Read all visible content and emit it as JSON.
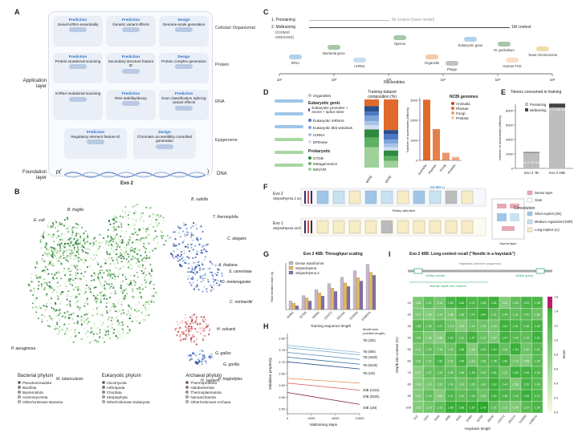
{
  "panelA": {
    "letter": "A",
    "layer_label_app": "Application layer",
    "layer_label_found": "Foundation layer",
    "rows": [
      {
        "name": "Cellular/ Organismal",
        "cells": [
          {
            "kind": "Prediction",
            "text": "Gene/ncRNA essentiality"
          },
          {
            "kind": "Prediction",
            "text": "Genetic variant effects"
          },
          {
            "kind": "Design",
            "text": "Genome-scale generation"
          }
        ]
      },
      {
        "name": "Protein",
        "cells": [
          {
            "kind": "Prediction",
            "text": "Protein mutational scanning"
          },
          {
            "kind": "Prediction",
            "text": "Secondary structure feature ID"
          },
          {
            "kind": "Design",
            "text": "Protein complex generation"
          }
        ]
      },
      {
        "name": "RNA",
        "cells": [
          {
            "kind": "",
            "text": "ncRNA mutational scanning"
          },
          {
            "kind": "Prediction",
            "text": "RNA stability/decay"
          },
          {
            "kind": "Prediction",
            "text": "Exon classification Splicing variant effects"
          }
        ]
      },
      {
        "name": "Epigenome",
        "cells": [
          {
            "kind": "Prediction",
            "text": "Regulatory element feature ID"
          },
          {
            "kind": "Design",
            "text": "Chromatin accessibility controlled generation"
          }
        ]
      }
    ],
    "dna_label": "DNA",
    "p_symbol": "p(",
    "p_close": ")",
    "evo_label": "Evo 2"
  },
  "panelB": {
    "letter": "B",
    "species": [
      "B. fragilis",
      "E. coli",
      "B. subtilis",
      "T. thermophila",
      "C. elegans",
      "A. thaliana",
      "S. cerevisiae",
      "D. melanogaster",
      "C. reinhardtii",
      "H. volcanii",
      "G. gallus",
      "G. gorilla",
      "H. sapiens",
      "P. troglodytes",
      "P. aeruginosa",
      "M. tuberculosis"
    ],
    "legend": [
      {
        "title": "Bacterial phylum",
        "items": [
          {
            "label": "Pseudomonadota",
            "color": "#1d6b2f"
          },
          {
            "label": "Bacillota",
            "color": "#3f9a45"
          },
          {
            "label": "Bacteroidota",
            "color": "#7cc26b"
          },
          {
            "label": "Actinomycetota",
            "color": "#b7dfa8"
          },
          {
            "label": "Other/Unknown Bacteria",
            "color": "#e3f1dc"
          }
        ]
      },
      {
        "title": "Eukaryotic phylum",
        "items": [
          {
            "label": "Ascomycota",
            "color": "#1f3f8f"
          },
          {
            "label": "Arthropoda",
            "color": "#3a63b8"
          },
          {
            "label": "Chordata",
            "color": "#6f93d2"
          },
          {
            "label": "Streptophyta",
            "color": "#a9c0e6"
          },
          {
            "label": "Other/Unknown Eukaryota",
            "color": "#dbe5f5"
          }
        ]
      },
      {
        "title": "Archaeal phylum",
        "items": [
          {
            "label": "Thermoproteota",
            "color": "#a3222a"
          },
          {
            "label": "Halobacteriota",
            "color": "#d44a4f"
          },
          {
            "label": "Thermoplasmatota",
            "color": "#e9878a"
          },
          {
            "label": "Nanoarchaeota",
            "color": "#f4bcbd"
          },
          {
            "label": "Other/Unknown Archaea",
            "color": "#fae3e3"
          }
        ]
      }
    ]
  },
  "panelC": {
    "letter": "C",
    "step1": "1. Pretraining",
    "step2": "2. Midtraining",
    "step2b": "(context extension)",
    "ctx8k": "8k context (base model)",
    "ctx1m": "1M context",
    "xlabel": "Nucleotides",
    "ticks": [
      "10¹",
      "10²",
      "10³",
      "10⁴",
      "10⁵",
      "10⁶"
    ],
    "items": [
      "tRNA",
      "Bacterial gene",
      "ncRNA",
      "Operon",
      "Organelle",
      "Eukaryotic gene",
      "Phage",
      "M. genitalium",
      "Human TAD",
      "Yeast chromosome"
    ]
  },
  "panelD": {
    "letter": "D",
    "comp_title": "Training dataset composition (%)",
    "legend_title1": "Organelles",
    "legend_title2": "Eukaryotic genic",
    "euk_items": [
      "Eukaryotic promoter + exons + splice sites",
      "Eukaryotic mRNAs",
      "Eukaryotic 5kb windows",
      "ncRNA",
      "EPDnew"
    ],
    "prok_title": "Prokaryotic",
    "prok_items": [
      "GTDB",
      "Metagenomics",
      "IMG/VR"
    ],
    "ncbi_title": "NCBI genomes",
    "ncbi_items": [
      "Animalia",
      "Plantae",
      "Fungi",
      "Protista"
    ],
    "bar_cats": [
      "Pretraining",
      "Midtraining"
    ],
    "ylabel": "Number of nucleotides (billions)",
    "yticks": [
      "0",
      "1000",
      "2000",
      "3000"
    ],
    "ncbi_cats": [
      "Animalia",
      "Plantae",
      "Fungi",
      "Protista"
    ]
  },
  "panelE": {
    "letter": "E",
    "title": "Tokens consumed in training",
    "legend": [
      "Pretraining",
      "Midtraining"
    ],
    "ylabel": "Number of nucleotides (billions)",
    "yticks": [
      "0",
      "2000",
      "4000",
      "6000",
      "8000"
    ],
    "cats": [
      "Evo 2 7B",
      "Evo 2 40B"
    ],
    "lbl7b": "Evo 2 7B base",
    "lbl40b": "Evo 2 40B base"
  },
  "panelF": {
    "letter": "F",
    "arch1": "Evo 2",
    "arch1b": "StripedHyena 2 architecture",
    "arch2": "Evo 1",
    "arch2b": "StripedHyena architecture",
    "se_label": "SE-MR-LI",
    "rotary": "Rotary attention",
    "hyena": "Hyena layer",
    "legend": [
      {
        "label": "Dense layer",
        "color": "#e6a9b4"
      },
      {
        "label": "Gate",
        "color": "#ffffff"
      },
      {
        "label": "Short explicit (SE)",
        "color": "#9fc6e8"
      },
      {
        "label": "Medium regularized (MR)",
        "color": "#c8e2f1"
      },
      {
        "label": "Long implicit (LI)",
        "color": "#f7ecc4"
      }
    ],
    "conv_title": "Convolution"
  },
  "panelG": {
    "letter": "G",
    "title": "Evo 2 40B: Throughput scaling",
    "legend": [
      "Dense transformer",
      "StripedHyena",
      "StripedHyena 2"
    ],
    "xlabel": "Training sequence length",
    "ylabel": "Total iteration time (s)",
    "xticks": [
      "16384",
      "32768",
      "65536",
      "131072",
      "262144",
      "524288",
      "1048576"
    ]
  },
  "panelH": {
    "letter": "H",
    "xlabel": "Midtraining steps",
    "ylabel": "Validation perplexity",
    "yticks": [
      "2.50",
      "2.55",
      "2.60",
      "2.65",
      "2.70",
      "2.75",
      "2.80"
    ],
    "xticks": [
      "0",
      "4000",
      "8000",
      "12000"
    ],
    "legend_title": "Model size (context length)",
    "series": [
      "7B (32k)",
      "7B (65k)",
      "7B (262k)",
      "7B (524k)",
      "7B (1M)",
      "40B (131k)",
      "40B (262k)",
      "40B (1M)"
    ]
  },
  "panelI": {
    "letter": "I",
    "title": "Evo 2 40B: Long-context recall (\"Needle in a haystack\")",
    "haystack": "Haystack (random sequence)",
    "needle": "100bp needle",
    "query": "100bp query",
    "depth": "Needle depth into context",
    "xlabel": "Haystack length",
    "ylabel": "Depth into context (%)",
    "colorbar_label": "Score",
    "colorbar_ticks": [
      "0.0",
      "0.2",
      "0.4",
      "0.6",
      "0.8",
      "1.0",
      "1.2",
      "1.4",
      "1.6"
    ],
    "rows": [
      "10",
      "20",
      "30",
      "40",
      "50",
      "60",
      "70",
      "80",
      "90",
      "100"
    ],
    "cols": [
      "512",
      "1024",
      "2048",
      "4096",
      "8192",
      "16384",
      "32768",
      "65536",
      "131072",
      "262144",
      "524288",
      "1048576"
    ],
    "cells": [
      [
        "1.06",
        "1.31",
        "1.14",
        "1.52",
        "1.63",
        "1.47",
        "1.48",
        "1.61",
        "1.02",
        "1.30",
        "1.51",
        "1.48"
      ],
      [
        "1.07",
        "1.00",
        "1.14",
        "1.08",
        "1.36",
        "1.47",
        "1.64",
        "1.31",
        "1.40",
        "1.31",
        "1.40",
        "1.20"
      ],
      [
        "1.38",
        "1.30",
        "1.41",
        "1.19",
        "1.02",
        "1.26",
        "1.18",
        "1.16",
        "1.61",
        "1.51",
        "1.45",
        "1.54"
      ],
      [
        "1.29",
        "1.06",
        "0.98",
        "1.52",
        "1.31",
        "1.57",
        "1.23",
        "1.07",
        "1.57",
        "1.40",
        "1.34",
        "1.61"
      ],
      [
        "1.11",
        "1.29",
        "1.19",
        "1.21",
        "1.58",
        "1.03",
        "1.43",
        "1.64",
        "1.29",
        "1.64",
        "1.20",
        "1.41"
      ],
      [
        "1.22",
        "1.21",
        "1.52",
        "1.21",
        "1.58",
        "1.16",
        "1.38",
        "1.46",
        "1.60",
        "1.14",
        "1.05",
        "1.40"
      ],
      [
        "0.97",
        "1.27",
        "1.34",
        "1.30",
        "1.36",
        "1.53",
        "1.32",
        "1.51",
        "1.22",
        "1.60",
        "1.58",
        "1.46"
      ],
      [
        "1.00",
        "1.10",
        "1.20",
        "1.33",
        "1.20",
        "1.35",
        "1.34",
        "1.62",
        "1.44",
        "1.08",
        "1.53",
        "1.40"
      ],
      [
        "1.02",
        "1.29",
        "1.00",
        "1.47",
        "1.33",
        "1.45",
        "1.20",
        "1.60",
        "1.48",
        "1.42",
        "1.63",
        "1.47"
      ],
      [
        "1.01",
        "1.14",
        "1.31",
        "1.66",
        "1.66",
        "1.67",
        "1.78",
        "1.31",
        "1.13",
        "1.04",
        "1.37",
        "1.50"
      ]
    ]
  }
}
